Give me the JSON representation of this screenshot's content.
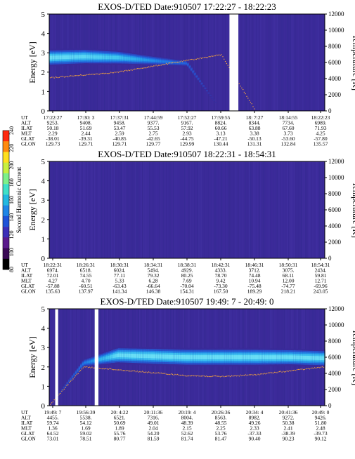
{
  "colorbar": {
    "label": "Second Harmonic Current",
    "ticks": [
      "80",
      "100",
      "120",
      "140",
      "160",
      "180",
      "200",
      "220",
      "240"
    ],
    "colors": [
      "#000000",
      "#3a0a55",
      "#5a1b8c",
      "#3c2fb8",
      "#1f53d8",
      "#1f86e6",
      "#22b8e0",
      "#3fe0c8",
      "#7df08a",
      "#c8f040",
      "#ffe020",
      "#ff8a10",
      "#ff2a10"
    ]
  },
  "chart_data": [
    {
      "type": "heatmap",
      "title": "EXOS-D/TED   Date:910507   17:22:27 - 18:22:23",
      "ylabel": "Energy [eV]",
      "y2label": "Temperature [K]",
      "ylim": [
        0,
        5
      ],
      "y2lim": [
        0,
        12000
      ],
      "yticks": [
        "0",
        "1",
        "2",
        "3",
        "4",
        "5"
      ],
      "y2ticks": [
        "0",
        "2000",
        "4000",
        "6000",
        "8000",
        "10000",
        "12000"
      ],
      "row_labels": [
        "UT",
        "ALT",
        "ILAT",
        "MLT",
        "GLAT",
        "GLON"
      ],
      "columns": [
        [
          "17:22:27",
          "9253.",
          "50.18",
          "2.29",
          "-38.01",
          "129.73"
        ],
        [
          "17:30: 3",
          "9408.",
          "51.69",
          "2.44",
          "-39.31",
          "129.71"
        ],
        [
          "17:37:31",
          "9458.",
          "53.47",
          "2.59",
          "-40.85",
          "129.71"
        ],
        [
          "17:44:59",
          "9377.",
          "55.53",
          "2.75",
          "-42.65",
          "129.77"
        ],
        [
          "17:52:27",
          "9167.",
          "57.92",
          "2.93",
          "-44.75",
          "129.99"
        ],
        [
          "17:59:55",
          "8824.",
          "60.66",
          "3.13",
          "-47.21",
          "130.44"
        ],
        [
          "18: 7:27",
          "8344.",
          "63.88",
          "3.38",
          "-50.13",
          "131.31"
        ],
        [
          "18:14:55",
          "7734.",
          "67.60",
          "3.73",
          "-53.60",
          "132.84"
        ],
        [
          "18:22:23",
          "6989.",
          "71.93",
          "4.25",
          "-57.80",
          "135.57"
        ]
      ],
      "band": {
        "center_ev": [
          2.75,
          2.8,
          2.75,
          2.6,
          2.45,
          0,
          0,
          0,
          0
        ],
        "width_ev": [
          0.9,
          0.85,
          0.75,
          0.5,
          0.3,
          0,
          0,
          0,
          0
        ]
      },
      "temperature_trace_ev": [
        1.7,
        1.85,
        2.0,
        2.3,
        2.6,
        2.9,
        0,
        0,
        0
      ],
      "data_gaps_ut": [
        [
          "18: 2:00",
          "18: 4:00"
        ]
      ]
    },
    {
      "type": "heatmap",
      "title": "EXOS-D/TED   Date:910507   18:22:31 - 18:54:31",
      "ylabel": "Energy [eV]",
      "y2label": "Temperature [K]",
      "ylim": [
        0,
        5
      ],
      "y2lim": [
        0,
        12000
      ],
      "yticks": [
        "0",
        "1",
        "2",
        "3",
        "4",
        "5"
      ],
      "y2ticks": [
        "0",
        "2000",
        "4000",
        "6000",
        "8000",
        "10000",
        "12000"
      ],
      "row_labels": [
        "UT",
        "ALT",
        "ILAT",
        "MLT",
        "GLAT",
        "GLON"
      ],
      "columns": [
        [
          "18:22:31",
          "6974.",
          "72.01",
          "4.27",
          "-57.88",
          "135.63"
        ],
        [
          "18:26:31",
          "6518.",
          "74.55",
          "4.70",
          "-60.51",
          "137.97"
        ],
        [
          "18:30:31",
          "6024.",
          "77.11",
          "5.33",
          "-63.43",
          "141.34"
        ],
        [
          "18:34:31",
          "5494.",
          "79.32",
          "6.28",
          "-66.64",
          "146.38"
        ],
        [
          "18:38:31",
          "4929.",
          "80.25",
          "7.69",
          "-70.04",
          "154.31"
        ],
        [
          "18:42:31",
          "4333.",
          "78.70",
          "9.42",
          "-73.30",
          "167.50"
        ],
        [
          "18:46:31",
          "3712.",
          "74.48",
          "10.94",
          "-75.48",
          "189.29"
        ],
        [
          "18:50:31",
          "3075.",
          "68.11",
          "12.00",
          "-74.77",
          "218.21"
        ],
        [
          "18:54:31",
          "2434.",
          "59.81",
          "12.71",
          "-69.96",
          "243.05"
        ]
      ],
      "band": {
        "center_ev": [
          0,
          0,
          0,
          0,
          0,
          0,
          0,
          0,
          0
        ],
        "width_ev": [
          0,
          0,
          0,
          0,
          0,
          0,
          0,
          0,
          0
        ]
      },
      "temperature_trace_ev": [],
      "data_gaps_ut": []
    },
    {
      "type": "heatmap",
      "title": "EXOS-D/TED   Date:910507   19:49: 7 - 20:49: 0",
      "ylabel": "Energy [eV]",
      "y2label": "Temperature [K]",
      "ylim": [
        0,
        5
      ],
      "y2lim": [
        0,
        12000
      ],
      "yticks": [
        "0",
        "1",
        "2",
        "3",
        "4",
        "5"
      ],
      "y2ticks": [
        "0",
        "2000",
        "4000",
        "6000",
        "8000",
        "10000",
        "12000"
      ],
      "row_labels": [
        "UT",
        "ALT",
        "ILAT",
        "MLT",
        "GLAT",
        "GLON"
      ],
      "columns": [
        [
          "19:49: 7",
          "4455.",
          "59.74",
          "1.36",
          "64.52",
          "73.01"
        ],
        [
          "19:56:39",
          "5538.",
          "54.12",
          "1.69",
          "59.02",
          "78.51"
        ],
        [
          "20: 4:22",
          "6521.",
          "50.69",
          "1.89",
          "55.76",
          "80.77"
        ],
        [
          "20:11:36",
          "7316.",
          "49.01",
          "2.04",
          "54.20",
          "81.59"
        ],
        [
          "20:19: 4",
          "8004.",
          "48.39",
          "2.15",
          "52.62",
          "81.74"
        ],
        [
          "20:26:36",
          "8563.",
          "48.55",
          "2.25",
          "53.76",
          "81.47"
        ],
        [
          "20:34: 4",
          "8982.",
          "49.26",
          "2.33",
          "-37.33",
          "90.40"
        ],
        [
          "20:41:36",
          "9272.",
          "50.38",
          "2.41",
          "-38.39",
          "90.23"
        ],
        [
          "20:49: 0",
          "9426.",
          "51.80",
          "2.48",
          "-39.73",
          "90.12"
        ]
      ],
      "band": {
        "center_ev": [
          0,
          2.2,
          2.6,
          2.55,
          2.5,
          2.5,
          2.5,
          2.5,
          2.45
        ],
        "width_ev": [
          0,
          0.4,
          0.9,
          0.95,
          0.95,
          0.95,
          0.95,
          0.9,
          0.9
        ]
      },
      "temperature_trace_ev": [
        0,
        2.0,
        1.85,
        1.7,
        1.55,
        1.5,
        1.6,
        1.8,
        2.0
      ],
      "data_gaps_ut": [
        [
          "19:49:40",
          "19:50:20"
        ],
        [
          "19:58:30",
          "19:59:20"
        ]
      ]
    }
  ]
}
